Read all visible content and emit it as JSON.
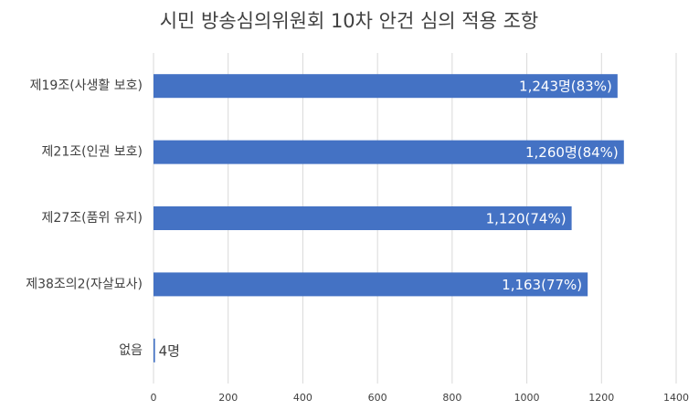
{
  "chart_data": {
    "type": "bar",
    "orientation": "horizontal",
    "title": "시민 방송심의위원회 10차 안건 심의 적용 조항",
    "categories": [
      "제19조(사생활 보호)",
      "제21조(인권 보호)",
      "제27조(품위 유지)",
      "제38조의2(자살묘사)",
      "없음"
    ],
    "values": [
      1243,
      1260,
      1120,
      1163,
      4
    ],
    "value_labels": [
      "1,243명(83%)",
      "1,260명(84%)",
      "1,120(74%)",
      "1,163(77%)",
      "4명"
    ],
    "color": "#4472c4",
    "xlim": [
      0,
      1400
    ],
    "xticks": [
      0,
      200,
      400,
      600,
      800,
      1000,
      1200,
      1400
    ],
    "grid": true
  }
}
